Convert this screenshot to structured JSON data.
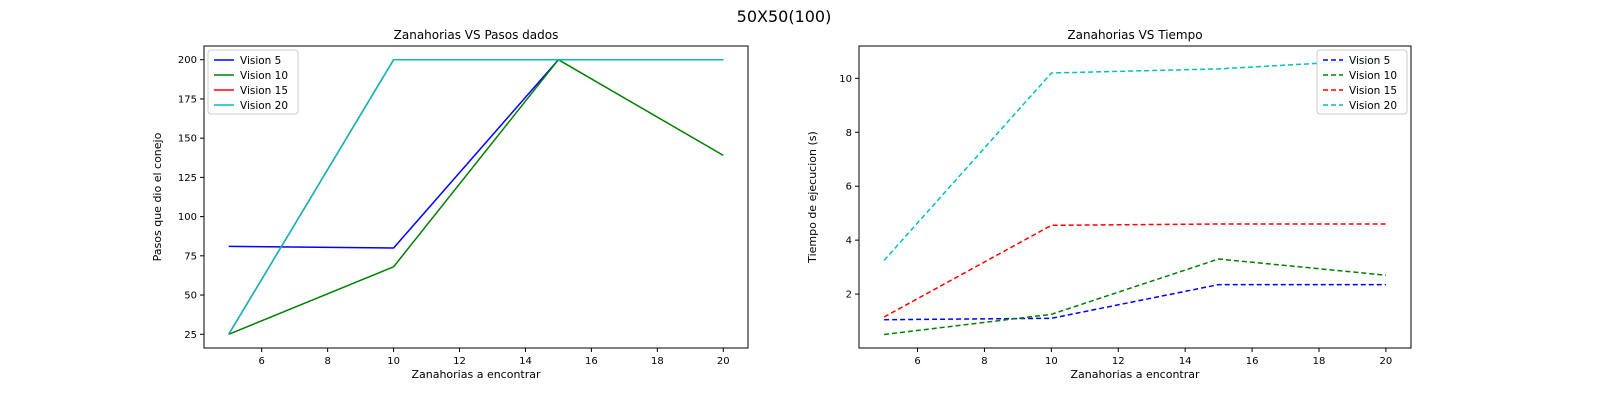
{
  "suptitle": "50X50(100)",
  "colors": {
    "Vision 5": "#0000ff",
    "Vision 10": "#008000",
    "Vision 15": "#ff0000",
    "Vision 20": "#00bfbf"
  },
  "chart_data": [
    {
      "type": "line",
      "title": "Zanahorias VS Pasos dados",
      "xlabel": "Zanahorias a encontrar",
      "ylabel": "Pasos que dio el conejo",
      "xlim": [
        4.25,
        20.75
      ],
      "ylim": [
        16.25,
        208.75
      ],
      "xticks": [
        6,
        8,
        10,
        12,
        14,
        16,
        18,
        20
      ],
      "yticks": [
        25,
        50,
        75,
        100,
        125,
        150,
        175,
        200
      ],
      "line_style": "solid",
      "legend_position": "upper left",
      "grid": false,
      "x": [
        5,
        10,
        15,
        20
      ],
      "series": [
        {
          "name": "Vision 5",
          "values": [
            81,
            80,
            200,
            200
          ]
        },
        {
          "name": "Vision 10",
          "values": [
            25,
            68,
            200,
            139
          ]
        },
        {
          "name": "Vision 15",
          "values": [
            25,
            200,
            200,
            200
          ]
        },
        {
          "name": "Vision 20",
          "values": [
            25,
            200,
            200,
            200
          ]
        }
      ]
    },
    {
      "type": "line",
      "title": "Zanahorias VS Tiempo",
      "xlabel": "Zanahorias a encontrar",
      "ylabel": "Tiempo de ejecucion (s)",
      "xlim": [
        4.25,
        20.75
      ],
      "ylim": [
        0.0,
        11.2
      ],
      "xticks": [
        6,
        8,
        10,
        12,
        14,
        16,
        18,
        20
      ],
      "yticks": [
        2,
        4,
        6,
        8,
        10
      ],
      "line_style": "dashed",
      "legend_position": "upper right",
      "grid": false,
      "x": [
        5,
        10,
        15,
        20
      ],
      "series": [
        {
          "name": "Vision 5",
          "values": [
            1.05,
            1.1,
            2.35,
            2.35
          ]
        },
        {
          "name": "Vision 10",
          "values": [
            0.5,
            1.25,
            3.3,
            2.7
          ]
        },
        {
          "name": "Vision 15",
          "values": [
            1.15,
            4.55,
            4.6,
            4.6
          ]
        },
        {
          "name": "Vision 20",
          "values": [
            3.25,
            10.2,
            10.35,
            10.7
          ]
        }
      ]
    }
  ]
}
